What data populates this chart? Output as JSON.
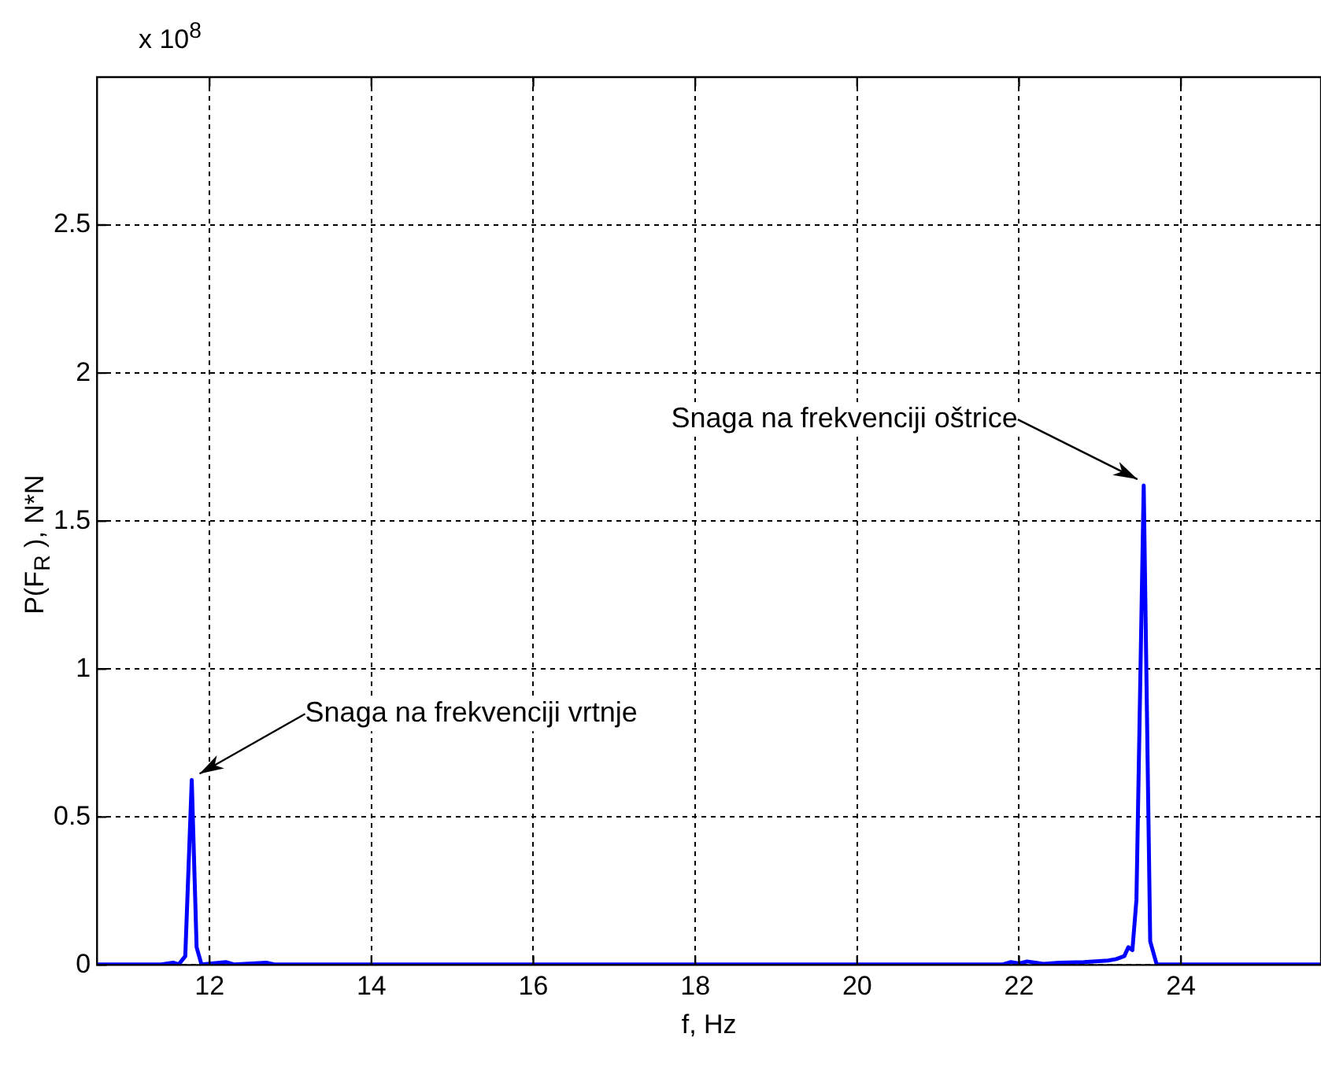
{
  "chart_data": {
    "type": "line",
    "xlabel": "f, Hz",
    "ylabel": "P(F$_{R}$ ), N*N",
    "annotations": [
      "x 10$^{8}$",
      {
        "text": "Snaga na frekvenciji vrtnje",
        "x": 11.78,
        "y": 0.625
      },
      {
        "text": "Snaga na frekvenciji oštrice",
        "x": 23.54,
        "y": 1.62
      }
    ],
    "x": [
      10.61,
      11.4,
      11.55,
      11.62,
      11.7,
      11.78,
      11.84,
      11.9,
      12.2,
      12.3,
      12.7,
      12.8,
      21.8,
      21.9,
      22.0,
      22.1,
      22.3,
      22.5,
      22.8,
      23.1,
      23.2,
      23.3,
      23.35,
      23.4,
      23.45,
      23.54,
      23.62,
      23.7,
      25.73
    ],
    "series": [
      {
        "color": "#0000ff",
        "values": [
          0.002,
          0.002,
          0.008,
          0.002,
          0.03,
          0.625,
          0.06,
          0.002,
          0.01,
          0.002,
          0.008,
          0.002,
          0.002,
          0.01,
          0.005,
          0.012,
          0.004,
          0.008,
          0.01,
          0.015,
          0.02,
          0.03,
          0.06,
          0.05,
          0.22,
          1.62,
          0.08,
          0.002,
          0.002
        ]
      }
    ],
    "xlim": [
      10.61,
      25.73
    ],
    "xticks": [
      12,
      14,
      16,
      18,
      20,
      22,
      24
    ],
    "ylim": [
      0,
      3
    ],
    "yticks": [
      0,
      0.5,
      1,
      1.5,
      2,
      2.5
    ],
    "grid": true,
    "legend": false,
    "marker": "none",
    "line_style": "solid"
  }
}
